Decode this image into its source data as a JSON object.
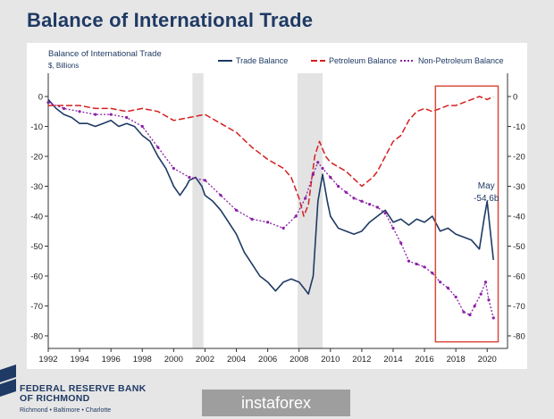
{
  "page": {
    "title": "Balance of International Trade"
  },
  "footer": {
    "bank_name_line1": "FEDERAL RESERVE BANK",
    "bank_name_line2": "OF RICHMOND",
    "bank_cities": "Richmond • Baltimore • Charlotte",
    "watermark": "instaforex"
  },
  "colors": {
    "trade_balance": "#1f3a64",
    "petroleum": "#d42020",
    "non_petroleum": "#8b1fa5",
    "recession": "#e3e3e3",
    "highlight_box": "#d94a3a"
  },
  "chart_data": {
    "type": "line",
    "title": "Balance of International Trade",
    "subtitle": "$, Billions",
    "xlabel": "",
    "ylabel": "",
    "xlim": [
      1992,
      2020.5
    ],
    "ylim": [
      -83,
      3
    ],
    "x_ticks": [
      1992,
      1994,
      1996,
      1998,
      2000,
      2002,
      2004,
      2006,
      2008,
      2010,
      2012,
      2014,
      2016,
      2018,
      2020
    ],
    "y_ticks": [
      0,
      -10,
      -20,
      -30,
      -40,
      -50,
      -60,
      -70,
      -80
    ],
    "grid": false,
    "legend_position": "top",
    "recessions": [
      [
        2001.2,
        2001.9
      ],
      [
        2007.9,
        2009.5
      ]
    ],
    "highlight_range": {
      "x": [
        2016.7,
        2020.7
      ],
      "y": [
        -82,
        3.5
      ]
    },
    "annotation": {
      "x": 2020.4,
      "y": -54.6,
      "lines": [
        "May",
        "-54.6b"
      ]
    },
    "series": [
      {
        "name": "Trade Balance",
        "style": "solid",
        "points": [
          [
            1992,
            -1
          ],
          [
            1992.5,
            -4
          ],
          [
            1993,
            -6
          ],
          [
            1993.5,
            -7
          ],
          [
            1994,
            -9
          ],
          [
            1994.5,
            -9
          ],
          [
            1995,
            -10
          ],
          [
            1995.5,
            -9
          ],
          [
            1996,
            -8
          ],
          [
            1996.5,
            -10
          ],
          [
            1997,
            -9
          ],
          [
            1997.5,
            -10
          ],
          [
            1998,
            -13
          ],
          [
            1998.5,
            -15
          ],
          [
            1999,
            -20
          ],
          [
            1999.5,
            -24
          ],
          [
            2000,
            -30
          ],
          [
            2000.4,
            -33
          ],
          [
            2000.8,
            -30
          ],
          [
            2001,
            -28
          ],
          [
            2001.4,
            -27
          ],
          [
            2001.8,
            -30
          ],
          [
            2002,
            -33
          ],
          [
            2002.5,
            -35
          ],
          [
            2003,
            -38
          ],
          [
            2003.5,
            -42
          ],
          [
            2004,
            -46
          ],
          [
            2004.5,
            -52
          ],
          [
            2005,
            -56
          ],
          [
            2005.5,
            -60
          ],
          [
            2006,
            -62
          ],
          [
            2006.5,
            -65
          ],
          [
            2007,
            -62
          ],
          [
            2007.5,
            -61
          ],
          [
            2008,
            -62
          ],
          [
            2008.3,
            -64
          ],
          [
            2008.6,
            -66
          ],
          [
            2008.9,
            -60
          ],
          [
            2009.2,
            -35
          ],
          [
            2009.5,
            -26
          ],
          [
            2009.8,
            -35
          ],
          [
            2010,
            -40
          ],
          [
            2010.5,
            -44
          ],
          [
            2011,
            -45
          ],
          [
            2011.5,
            -46
          ],
          [
            2012,
            -45
          ],
          [
            2012.5,
            -42
          ],
          [
            2013,
            -40
          ],
          [
            2013.5,
            -38
          ],
          [
            2014,
            -42
          ],
          [
            2014.5,
            -41
          ],
          [
            2015,
            -43
          ],
          [
            2015.5,
            -41
          ],
          [
            2016,
            -42
          ],
          [
            2016.5,
            -40
          ],
          [
            2017,
            -45
          ],
          [
            2017.5,
            -44
          ],
          [
            2018,
            -46
          ],
          [
            2018.5,
            -47
          ],
          [
            2019,
            -48
          ],
          [
            2019.5,
            -51
          ],
          [
            2019.8,
            -41
          ],
          [
            2020,
            -35
          ],
          [
            2020.2,
            -45
          ],
          [
            2020.4,
            -54.6
          ]
        ]
      },
      {
        "name": "Petroleum Balance",
        "style": "dashed",
        "points": [
          [
            1992,
            -3
          ],
          [
            1993,
            -3
          ],
          [
            1994,
            -3
          ],
          [
            1995,
            -4
          ],
          [
            1996,
            -4
          ],
          [
            1997,
            -5
          ],
          [
            1998,
            -4
          ],
          [
            1999,
            -5
          ],
          [
            2000,
            -8
          ],
          [
            2001,
            -7
          ],
          [
            2002,
            -6
          ],
          [
            2003,
            -9
          ],
          [
            2004,
            -12
          ],
          [
            2005,
            -17
          ],
          [
            2006,
            -21
          ],
          [
            2007,
            -24
          ],
          [
            2007.5,
            -27
          ],
          [
            2008,
            -34
          ],
          [
            2008.3,
            -40
          ],
          [
            2008.6,
            -36
          ],
          [
            2009,
            -20
          ],
          [
            2009.3,
            -15
          ],
          [
            2009.7,
            -20
          ],
          [
            2010,
            -22
          ],
          [
            2011,
            -25
          ],
          [
            2012,
            -30
          ],
          [
            2012.7,
            -27
          ],
          [
            2013,
            -25
          ],
          [
            2013.5,
            -20
          ],
          [
            2014,
            -15
          ],
          [
            2014.5,
            -13
          ],
          [
            2015,
            -8
          ],
          [
            2015.5,
            -5
          ],
          [
            2016,
            -4
          ],
          [
            2016.5,
            -5
          ],
          [
            2017,
            -4
          ],
          [
            2017.5,
            -3
          ],
          [
            2018,
            -3
          ],
          [
            2018.5,
            -2
          ],
          [
            2019,
            -1
          ],
          [
            2019.5,
            0
          ],
          [
            2020,
            -1
          ],
          [
            2020.4,
            0
          ]
        ]
      },
      {
        "name": "Non-Petroleum Balance",
        "style": "dotted",
        "points": [
          [
            1992,
            -2
          ],
          [
            1993,
            -4
          ],
          [
            1994,
            -5
          ],
          [
            1995,
            -6
          ],
          [
            1996,
            -6
          ],
          [
            1997,
            -7
          ],
          [
            1998,
            -10
          ],
          [
            1999,
            -17
          ],
          [
            2000,
            -24
          ],
          [
            2001,
            -27
          ],
          [
            2002,
            -28
          ],
          [
            2003,
            -33
          ],
          [
            2004,
            -38
          ],
          [
            2005,
            -41
          ],
          [
            2006,
            -42
          ],
          [
            2007,
            -44
          ],
          [
            2007.8,
            -40
          ],
          [
            2008.4,
            -34
          ],
          [
            2008.9,
            -26
          ],
          [
            2009.2,
            -22
          ],
          [
            2009.5,
            -24
          ],
          [
            2010,
            -27
          ],
          [
            2010.5,
            -30
          ],
          [
            2011,
            -32
          ],
          [
            2011.5,
            -34
          ],
          [
            2012,
            -35
          ],
          [
            2012.5,
            -36
          ],
          [
            2013,
            -37
          ],
          [
            2013.5,
            -39
          ],
          [
            2014,
            -44
          ],
          [
            2014.5,
            -49
          ],
          [
            2015,
            -55
          ],
          [
            2015.5,
            -56
          ],
          [
            2016,
            -57
          ],
          [
            2016.5,
            -59
          ],
          [
            2017,
            -62
          ],
          [
            2017.5,
            -64
          ],
          [
            2018,
            -67
          ],
          [
            2018.5,
            -72
          ],
          [
            2018.9,
            -73
          ],
          [
            2019.2,
            -70
          ],
          [
            2019.6,
            -66
          ],
          [
            2019.9,
            -62
          ],
          [
            2020.1,
            -68
          ],
          [
            2020.4,
            -74
          ]
        ]
      }
    ]
  }
}
